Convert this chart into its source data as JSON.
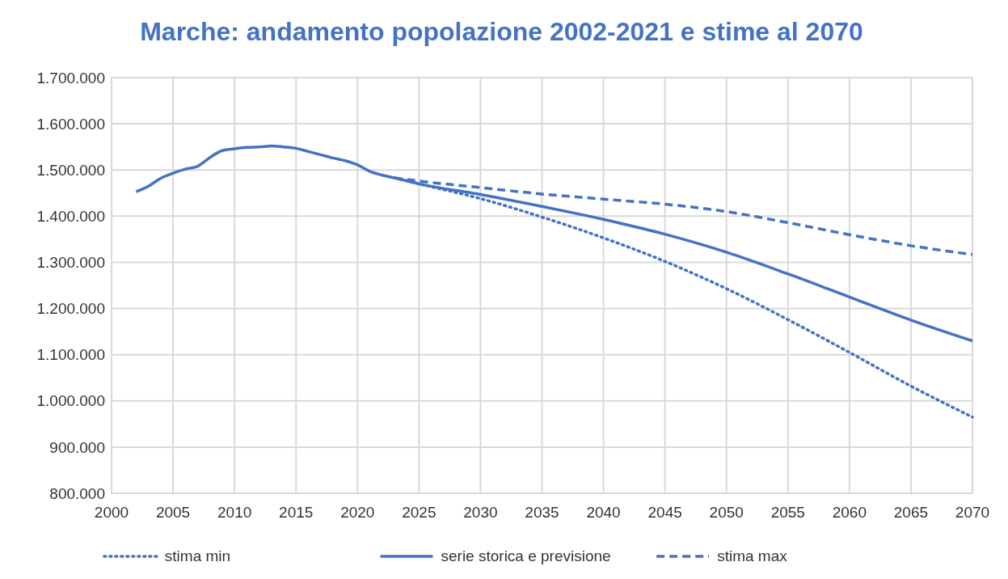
{
  "chart_data": {
    "type": "line",
    "title": "Marche: andamento popolazione 2002-2021 e stime al 2070",
    "xlim": [
      2000,
      2070
    ],
    "xticks": [
      2000,
      2005,
      2010,
      2015,
      2020,
      2025,
      2030,
      2035,
      2040,
      2045,
      2050,
      2055,
      2060,
      2065,
      2070
    ],
    "ylim": [
      800000,
      1700000
    ],
    "yticks": [
      {
        "value": 800000,
        "label": "800.000"
      },
      {
        "value": 900000,
        "label": "900.000"
      },
      {
        "value": 1000000,
        "label": "1.000.000"
      },
      {
        "value": 1100000,
        "label": "1.100.000"
      },
      {
        "value": 1200000,
        "label": "1.200.000"
      },
      {
        "value": 1300000,
        "label": "1.300.000"
      },
      {
        "value": 1400000,
        "label": "1.400.000"
      },
      {
        "value": 1500000,
        "label": "1.500.000"
      },
      {
        "value": 1600000,
        "label": "1.600.000"
      },
      {
        "value": 1700000,
        "label": "1.700.000"
      }
    ],
    "grid": true,
    "legend": "bottom",
    "marker": "none",
    "series": [
      {
        "name": "stima min",
        "color": "#4472c4",
        "line_style": "dotted",
        "x": [
          2023,
          2025,
          2030,
          2035,
          2040,
          2045,
          2050,
          2055,
          2060,
          2065,
          2070
        ],
        "values": [
          1483000,
          1470000,
          1438000,
          1398000,
          1353000,
          1302000,
          1243000,
          1176000,
          1105000,
          1032000,
          965000
        ]
      },
      {
        "name": "serie storica e previsione",
        "color": "#4472c4",
        "line_style": "solid",
        "x": [
          2002,
          2003,
          2004,
          2005,
          2006,
          2007,
          2008,
          2009,
          2010,
          2011,
          2012,
          2013,
          2014,
          2015,
          2016,
          2017,
          2018,
          2019,
          2020,
          2021,
          2022,
          2023,
          2025,
          2030,
          2035,
          2040,
          2045,
          2050,
          2055,
          2060,
          2065,
          2070
        ],
        "values": [
          1453000,
          1465000,
          1482000,
          1493000,
          1502000,
          1508000,
          1527000,
          1542000,
          1546000,
          1549000,
          1550000,
          1552000,
          1550000,
          1547000,
          1540000,
          1533000,
          1526000,
          1520000,
          1511000,
          1497000,
          1489000,
          1483000,
          1470000,
          1447000,
          1421000,
          1393000,
          1361000,
          1322000,
          1275000,
          1225000,
          1175000,
          1130000
        ]
      },
      {
        "name": "stima max",
        "color": "#4472c4",
        "line_style": "dashed",
        "x": [
          2023,
          2025,
          2030,
          2035,
          2040,
          2045,
          2050,
          2055,
          2060,
          2065,
          2070
        ],
        "values": [
          1483000,
          1476000,
          1462000,
          1448000,
          1437000,
          1426000,
          1410000,
          1386000,
          1360000,
          1336000,
          1317000
        ]
      }
    ]
  }
}
